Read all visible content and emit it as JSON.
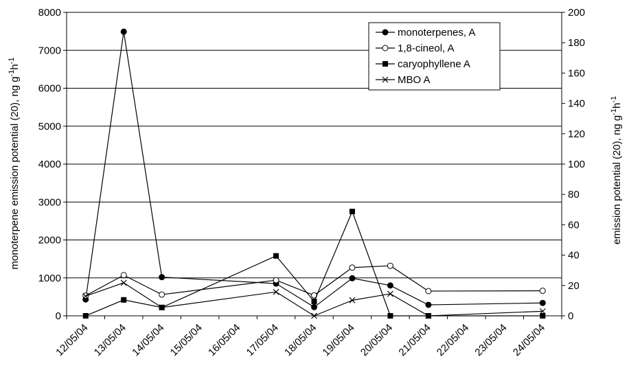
{
  "chart_data": {
    "type": "line",
    "x_categories": [
      "12/05/04",
      "13/05/04",
      "14/05/04",
      "15/05/04",
      "16/05/04",
      "17/05/04",
      "18/05/04",
      "19/05/04",
      "20/05/04",
      "21/05/04",
      "22/05/04",
      "23/05/04",
      "24/05/04"
    ],
    "y_left": {
      "label_base": "monoterpene emission potential (20), ng g",
      "label_sup1": "-1",
      "label_mid": "h",
      "label_sup2": "-1",
      "range": [
        0,
        8000
      ],
      "ticks": [
        0,
        1000,
        2000,
        3000,
        4000,
        5000,
        6000,
        7000,
        8000
      ],
      "tick_labels": [
        "0",
        "1000",
        "2000",
        "3000",
        "4000",
        "5000",
        "6000",
        "7000",
        "8000"
      ]
    },
    "y_right": {
      "label_base": "emission potential (20), ng g",
      "label_sup1": "-1",
      "label_mid": "h",
      "label_sup2": "-1",
      "range": [
        0,
        200
      ],
      "ticks": [
        0,
        20,
        40,
        60,
        80,
        100,
        120,
        140,
        160,
        180,
        200
      ],
      "tick_labels": [
        "0",
        "20",
        "40",
        "60",
        "80",
        "100",
        "120",
        "140",
        "160",
        "180",
        "200"
      ]
    },
    "grid": "horizontal",
    "legend_position": "top-right",
    "series": [
      {
        "name": "monoterpenes, A",
        "axis": "left",
        "marker": "filled-circle",
        "points": [
          {
            "x": "12/05/04",
            "y": 430
          },
          {
            "x": "13/05/04",
            "y": 7490
          },
          {
            "x": "14/05/04",
            "y": 1020
          },
          {
            "x": "17/05/04",
            "y": 850
          },
          {
            "x": "18/05/04",
            "y": 230
          },
          {
            "x": "19/05/04",
            "y": 990
          },
          {
            "x": "20/05/04",
            "y": 800
          },
          {
            "x": "21/05/04",
            "y": 290
          },
          {
            "x": "24/05/04",
            "y": 340
          }
        ]
      },
      {
        "name": "1,8-cineol, A",
        "axis": "right",
        "marker": "open-circle",
        "points": [
          {
            "x": "12/05/04",
            "y": 13.3
          },
          {
            "x": "13/05/04",
            "y": 26.8
          },
          {
            "x": "14/05/04",
            "y": 14.0
          },
          {
            "x": "17/05/04",
            "y": 23.5
          },
          {
            "x": "18/05/04",
            "y": 13.5
          },
          {
            "x": "19/05/04",
            "y": 31.8
          },
          {
            "x": "20/05/04",
            "y": 33.0
          },
          {
            "x": "21/05/04",
            "y": 16.3
          },
          {
            "x": "24/05/04",
            "y": 16.5
          }
        ]
      },
      {
        "name": "caryophyllene A",
        "axis": "left",
        "marker": "filled-square",
        "points": [
          {
            "x": "12/05/04",
            "y": 0
          },
          {
            "x": "13/05/04",
            "y": 420
          },
          {
            "x": "14/05/04",
            "y": 220
          },
          {
            "x": "17/05/04",
            "y": 1580
          },
          {
            "x": "18/05/04",
            "y": 380
          },
          {
            "x": "19/05/04",
            "y": 2750
          },
          {
            "x": "20/05/04",
            "y": 0
          },
          {
            "x": "21/05/04",
            "y": 0
          },
          {
            "x": "24/05/04",
            "y": 0
          }
        ]
      },
      {
        "name": "MBO A",
        "axis": "left",
        "marker": "x",
        "points": [
          {
            "x": "12/05/04",
            "y": 520
          },
          {
            "x": "13/05/04",
            "y": 870
          },
          {
            "x": "14/05/04",
            "y": 220
          },
          {
            "x": "17/05/04",
            "y": 630
          },
          {
            "x": "18/05/04",
            "y": 0
          },
          {
            "x": "19/05/04",
            "y": 410
          },
          {
            "x": "20/05/04",
            "y": 580
          },
          {
            "x": "21/05/04",
            "y": 0
          },
          {
            "x": "24/05/04",
            "y": 120
          }
        ]
      }
    ]
  }
}
